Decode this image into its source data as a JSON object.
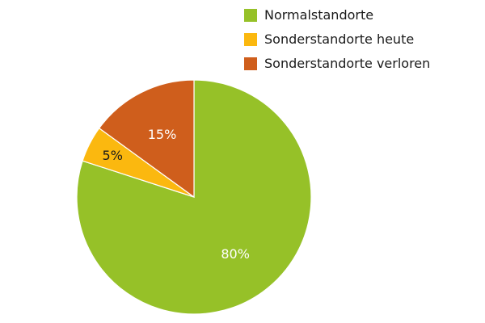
{
  "chart_data": {
    "type": "pie",
    "title": "",
    "start_angle_deg": 0,
    "direction": "clockwise",
    "slices": [
      {
        "label": "Normalstandorte",
        "value": 80,
        "display": "80%",
        "color": "#96c128",
        "label_color": "#ffffff"
      },
      {
        "label": "Sonderstandorte heute",
        "value": 5,
        "display": "5%",
        "color": "#fbb80f",
        "label_color": "#1a1a1a"
      },
      {
        "label": "Sonderstandorte verloren",
        "value": 15,
        "display": "15%",
        "color": "#cf5e1c",
        "label_color": "#ffffff"
      }
    ],
    "legend_position": "top-right"
  }
}
